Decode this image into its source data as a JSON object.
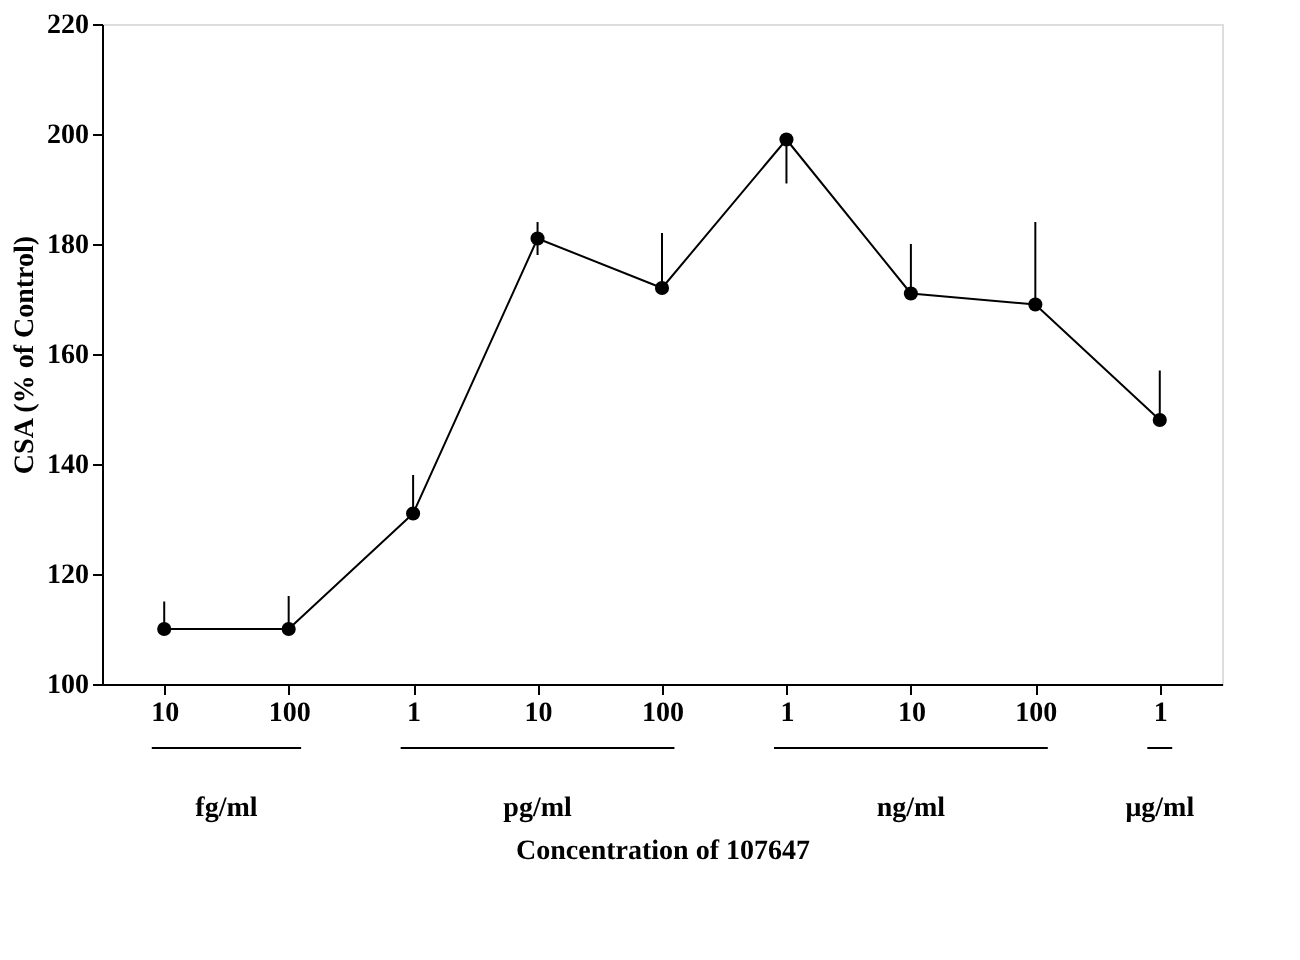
{
  "chart_data": {
    "type": "line",
    "xlabel": "Concentration of 107647",
    "ylabel": "CSA (% of Control)",
    "categories": [
      "10",
      "100",
      "1",
      "10",
      "100",
      "1",
      "10",
      "100",
      "1"
    ],
    "series": [
      {
        "color": "#000000",
        "values": [
          110,
          110,
          131,
          181,
          172,
          199,
          171,
          169,
          148
        ],
        "errors": [
          [
            110,
            115
          ],
          [
            110,
            116
          ],
          [
            131,
            138
          ],
          [
            178,
            184
          ],
          [
            172,
            182
          ],
          [
            191,
            199
          ],
          [
            171,
            180
          ],
          [
            169,
            184
          ],
          [
            148,
            157
          ]
        ]
      }
    ],
    "ylim": [
      100,
      220
    ],
    "yticks": [
      100,
      120,
      140,
      160,
      180,
      200,
      220
    ],
    "annotations": [
      "fg/ml",
      "pg/ml",
      "ng/ml",
      "μg/ml"
    ],
    "grid": false,
    "marker": "circle",
    "line_style": "solid"
  }
}
